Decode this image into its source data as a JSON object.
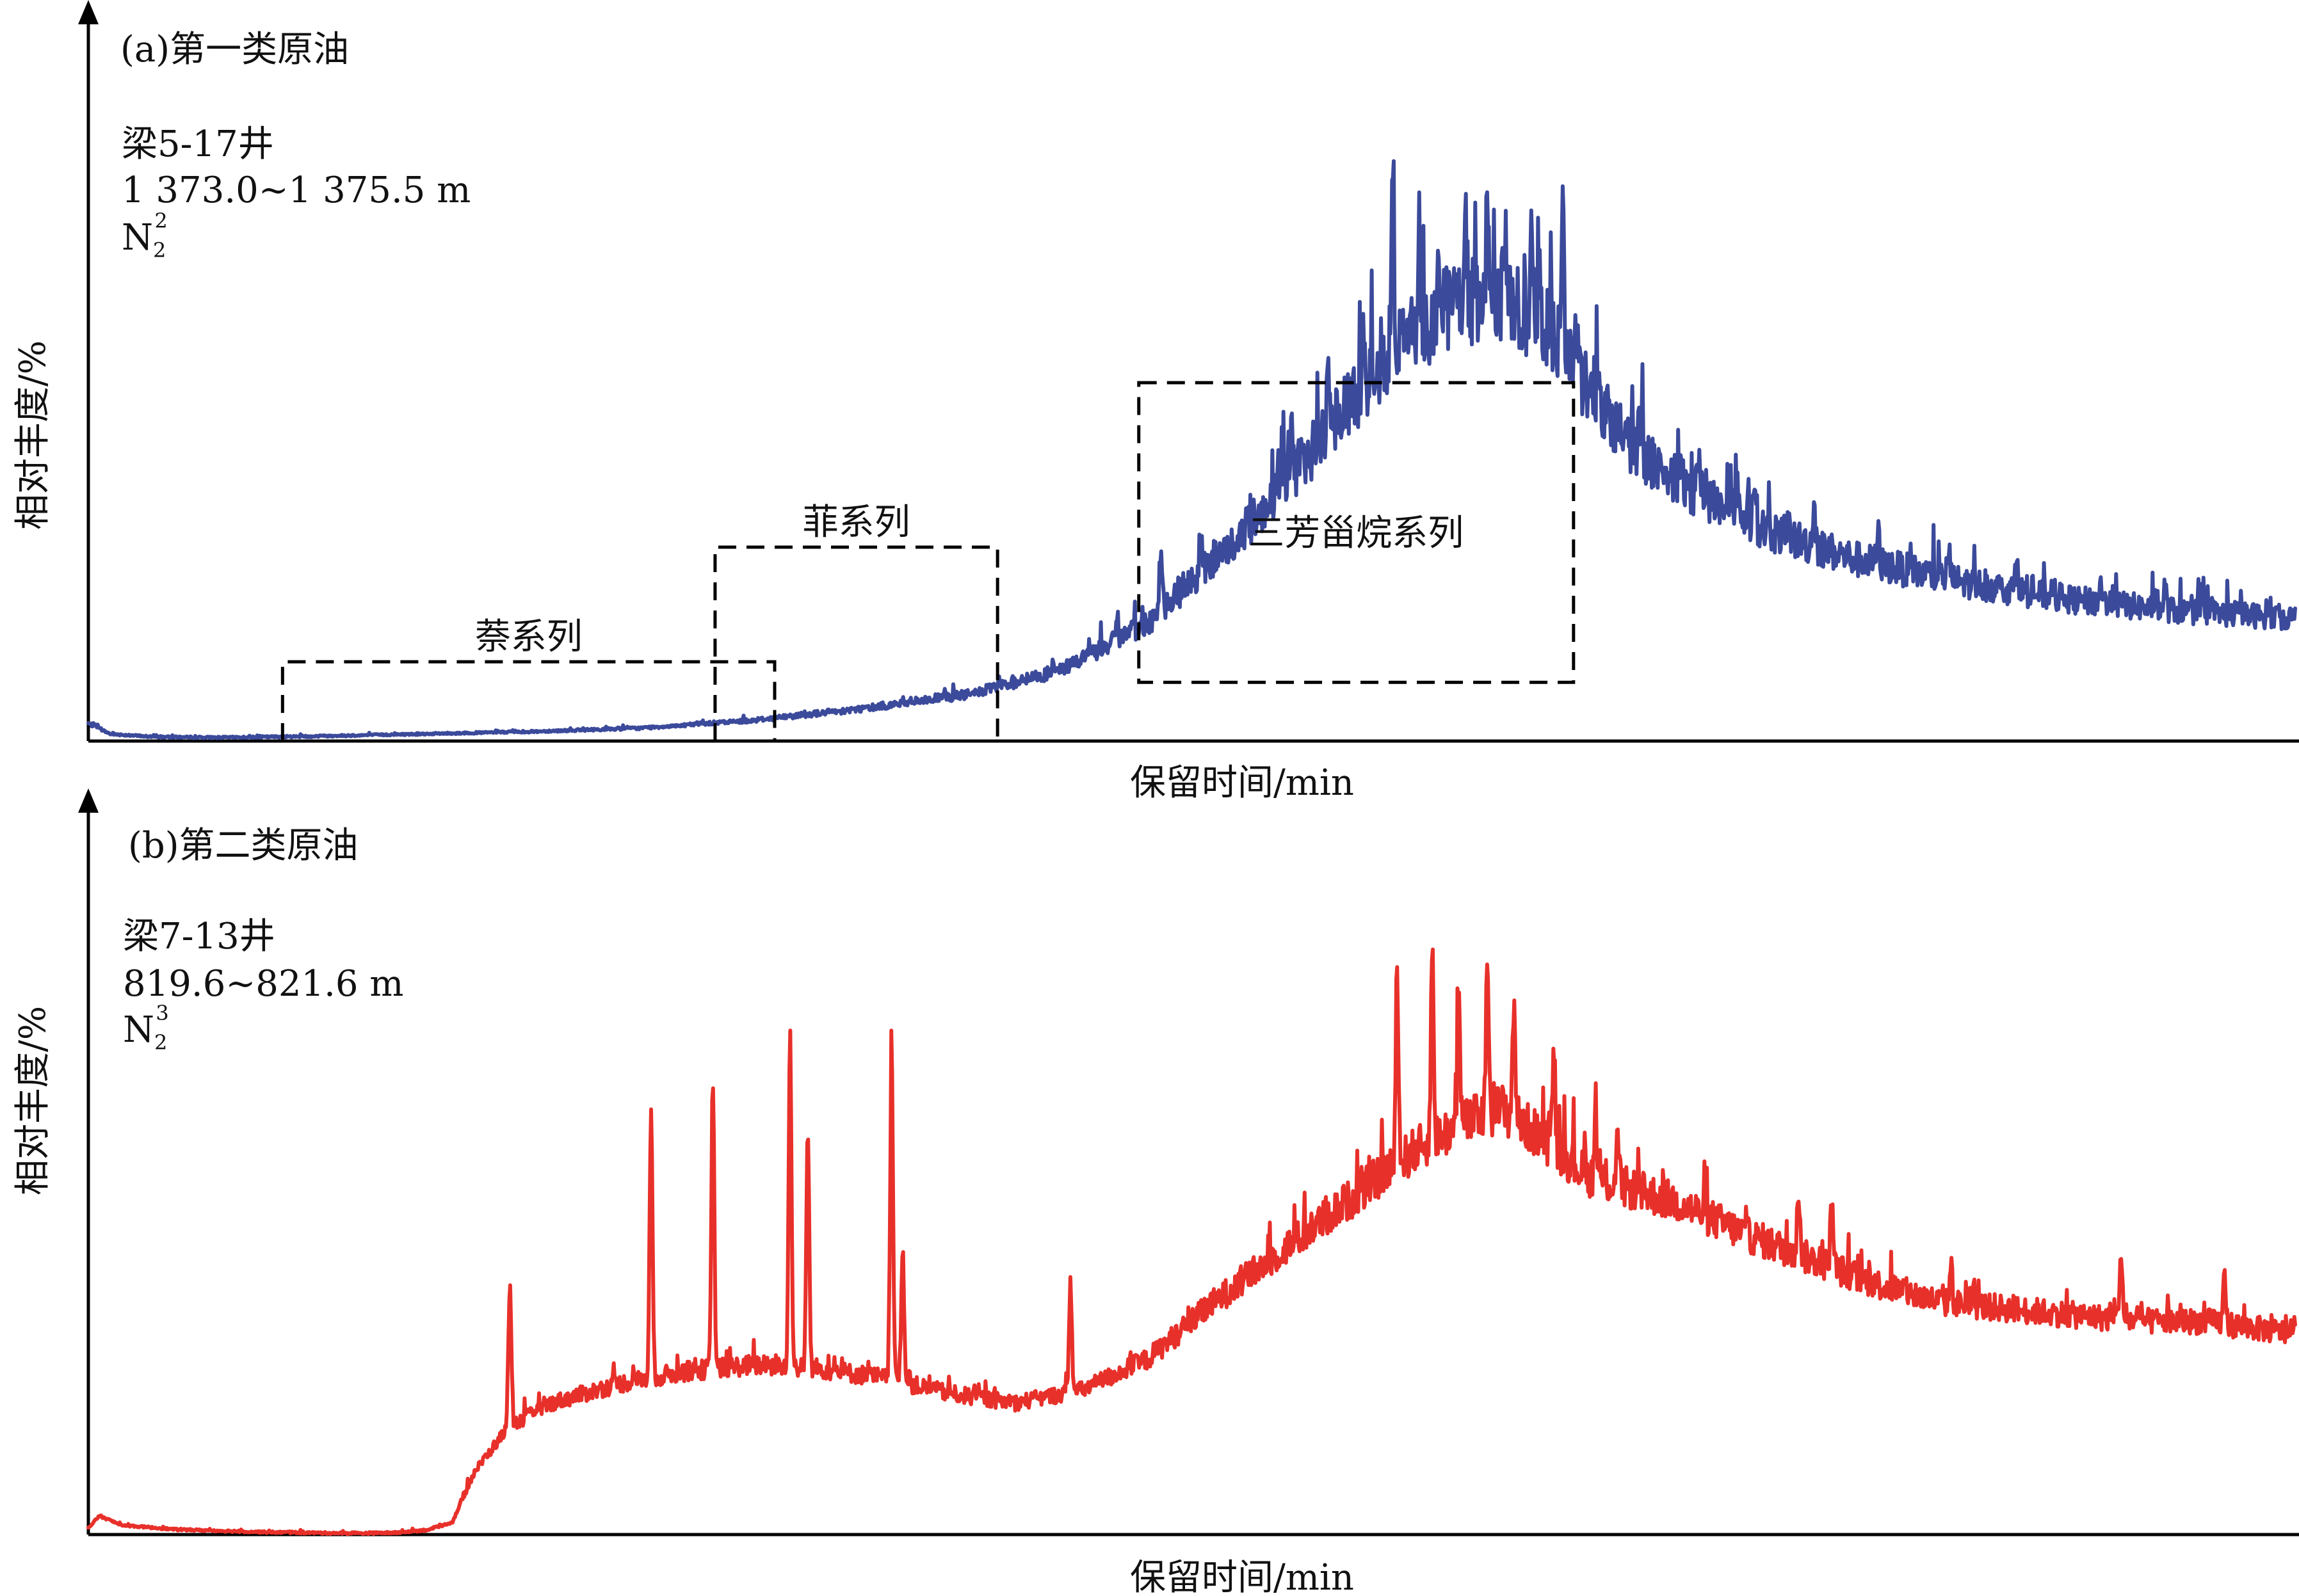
{
  "chart_data": [
    {
      "type": "line",
      "panel_label": "(a)第一类原油",
      "well": "梁5-17井",
      "depth": "1 373.0~1 375.5 m",
      "formation_base": "N",
      "formation_sub": "2",
      "formation_sup": "2",
      "xlabel": "保留时间/min",
      "ylabel": "相对丰度/%",
      "color": "#3b4a9a",
      "grid": false,
      "x_range": [
        0,
        100
      ],
      "y_range": [
        0,
        100
      ],
      "series": [
        {
          "x": [
            0,
            1,
            3,
            6,
            10,
            15,
            20,
            25,
            30,
            35,
            40,
            44,
            48,
            52,
            56,
            59,
            62,
            64,
            66,
            68,
            70,
            73,
            76,
            80,
            85,
            90,
            95,
            100
          ],
          "values": [
            3,
            1.2,
            0.7,
            0.6,
            0.8,
            1.2,
            1.6,
            2.2,
            3.5,
            5.5,
            8,
            12,
            20,
            34,
            52,
            66,
            75,
            75,
            71,
            60,
            50,
            42,
            36,
            31,
            27,
            24,
            22,
            21
          ],
          "peaks": [
            {
              "x": 48.6,
              "value": 33
            },
            {
              "x": 50.4,
              "value": 36
            },
            {
              "x": 54.5,
              "value": 53
            },
            {
              "x": 56.2,
              "value": 64
            },
            {
              "x": 57.8,
              "value": 70
            },
            {
              "x": 59.1,
              "value": 96
            },
            {
              "x": 60.3,
              "value": 87
            },
            {
              "x": 61.2,
              "value": 82
            },
            {
              "x": 62.4,
              "value": 87
            },
            {
              "x": 63.4,
              "value": 91
            },
            {
              "x": 64.2,
              "value": 86
            },
            {
              "x": 65.4,
              "value": 92
            },
            {
              "x": 66.8,
              "value": 89
            },
            {
              "x": 67.4,
              "value": 73
            },
            {
              "x": 70.3,
              "value": 54
            },
            {
              "x": 73.0,
              "value": 48
            },
            {
              "x": 75.5,
              "value": 45
            },
            {
              "x": 78.2,
              "value": 40
            },
            {
              "x": 81.1,
              "value": 35
            },
            {
              "x": 84.3,
              "value": 32
            },
            {
              "x": 87.4,
              "value": 30
            },
            {
              "x": 91.2,
              "value": 27
            },
            {
              "x": 94.1,
              "value": 26
            }
          ]
        }
      ],
      "regions": [
        {
          "label": "萘系列",
          "x_start": 8.8,
          "x_end": 31.1,
          "y_top": 13.5
        },
        {
          "label": "菲系列",
          "x_start": 28.4,
          "x_end": 41.2,
          "y_top": 33
        },
        {
          "label": "三芳甾烷系列",
          "x_start": 47.6,
          "x_end": 67.3,
          "y_top": 61,
          "y_bottom": 10
        }
      ]
    },
    {
      "type": "line",
      "panel_label": "(b)第二类原油",
      "well": "梁7-13井",
      "depth": "819.6~821.6 m",
      "formation_base": "N",
      "formation_sub": "2",
      "formation_sup": "3",
      "xlabel": "保留时间/min",
      "ylabel": "相对丰度/%",
      "color": "#e8302a",
      "grid": false,
      "x_range": [
        0,
        100
      ],
      "y_range": [
        0,
        100
      ],
      "series": [
        {
          "x": [
            0,
            0.5,
            1.5,
            4,
            8,
            12,
            14,
            15.5,
            16.5,
            17.5,
            19,
            21,
            24,
            27,
            30,
            33,
            36,
            39,
            42,
            45,
            48,
            51,
            54,
            57,
            60,
            62,
            64,
            66,
            68,
            70,
            72,
            75,
            78,
            81,
            84,
            87,
            90,
            93,
            96,
            100
          ],
          "values": [
            1,
            3,
            1.5,
            0.8,
            0.4,
            0.2,
            0.3,
            0.8,
            2,
            10,
            17,
            21,
            24,
            26,
            27,
            26.5,
            25,
            22.5,
            21,
            23,
            28,
            37,
            45,
            53,
            61,
            65,
            68,
            63,
            57,
            55,
            53,
            48,
            44,
            40,
            37,
            36,
            35,
            34,
            34,
            32
          ],
          "peaks": [
            {
              "x": 19.1,
              "value": 40
            },
            {
              "x": 25.5,
              "value": 68
            },
            {
              "x": 28.3,
              "value": 73
            },
            {
              "x": 31.8,
              "value": 80
            },
            {
              "x": 32.6,
              "value": 65
            },
            {
              "x": 36.4,
              "value": 78
            },
            {
              "x": 36.9,
              "value": 46
            },
            {
              "x": 44.5,
              "value": 40
            },
            {
              "x": 59.3,
              "value": 90
            },
            {
              "x": 60.9,
              "value": 93
            },
            {
              "x": 62.1,
              "value": 85
            },
            {
              "x": 63.4,
              "value": 91
            },
            {
              "x": 64.6,
              "value": 85
            },
            {
              "x": 66.4,
              "value": 79
            },
            {
              "x": 68.3,
              "value": 66
            },
            {
              "x": 69.3,
              "value": 63
            },
            {
              "x": 77.5,
              "value": 55
            },
            {
              "x": 79.0,
              "value": 53
            },
            {
              "x": 84.4,
              "value": 43
            },
            {
              "x": 92.1,
              "value": 45
            },
            {
              "x": 96.8,
              "value": 41
            }
          ]
        }
      ]
    }
  ]
}
